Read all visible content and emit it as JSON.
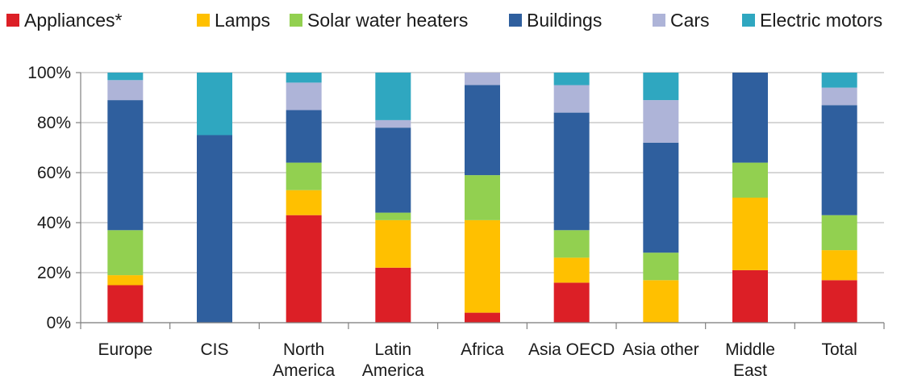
{
  "chart_data": {
    "type": "bar",
    "stacked": true,
    "percent": true,
    "categories": [
      [
        "Europe"
      ],
      [
        "CIS"
      ],
      [
        "North",
        "America"
      ],
      [
        "Latin",
        "America"
      ],
      [
        "Africa"
      ],
      [
        "Asia OECD"
      ],
      [
        "Asia other"
      ],
      [
        "Middle",
        "East"
      ],
      [
        "Total"
      ]
    ],
    "series": [
      {
        "name": "Appliances*",
        "color": "#dc1f26",
        "values": [
          15,
          0,
          43,
          22,
          4,
          16,
          0,
          21,
          17
        ]
      },
      {
        "name": "Lamps",
        "color": "#ffc000",
        "values": [
          4,
          0,
          10,
          19,
          37,
          10,
          17,
          29,
          12
        ]
      },
      {
        "name": "Solar water heaters",
        "color": "#92d050",
        "values": [
          18,
          0,
          11,
          3,
          18,
          11,
          11,
          14,
          14
        ]
      },
      {
        "name": "Buildings",
        "color": "#2f5f9e",
        "values": [
          52,
          75,
          21,
          34,
          36,
          47,
          44,
          36,
          44
        ]
      },
      {
        "name": "Cars",
        "color": "#aeb4d8",
        "values": [
          8,
          0,
          11,
          3,
          5,
          11,
          17,
          0,
          7
        ]
      },
      {
        "name": "Electric motors",
        "color": "#2fa7c0",
        "values": [
          3,
          25,
          4,
          19,
          0,
          5,
          11,
          0,
          6
        ]
      }
    ],
    "y_ticks": [
      "0%",
      "20%",
      "40%",
      "60%",
      "80%",
      "100%"
    ],
    "ylim": [
      0,
      100
    ],
    "grid": true,
    "legend": "top"
  }
}
